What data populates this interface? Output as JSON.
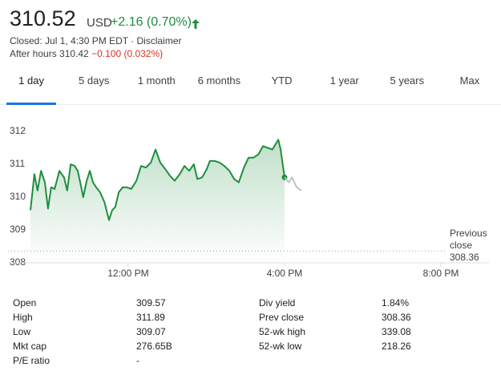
{
  "header": {
    "price": "310.52",
    "currency": "USD",
    "change": "+2.16 (0.70%)",
    "status": "Closed: Jul 1, 4:30 PM EDT · Disclaimer",
    "after_hours": "After hours 310.42",
    "after_hours_change": "−0.100 (0.032%)"
  },
  "tabs": [
    "1 day",
    "5 days",
    "1 month",
    "6 months",
    "YTD",
    "1 year",
    "5 years",
    "Max"
  ],
  "chart_data": {
    "type": "line",
    "x": [
      9.5,
      9.6,
      9.68,
      9.77,
      9.87,
      9.95,
      10.03,
      10.12,
      10.24,
      10.36,
      10.44,
      10.53,
      10.63,
      10.71,
      10.79,
      10.85,
      10.94,
      11.02,
      11.1,
      11.18,
      11.28,
      11.39,
      11.51,
      11.59,
      11.67,
      11.76,
      11.86,
      11.96,
      12.08,
      12.21,
      12.33,
      12.45,
      12.58,
      12.7,
      12.82,
      12.95,
      13.07,
      13.19,
      13.32,
      13.44,
      13.56,
      13.68,
      13.77,
      13.89,
      14.01,
      14.09,
      14.22,
      14.34,
      14.46,
      14.59,
      14.71,
      14.83,
      14.96,
      15.08,
      15.2,
      15.33,
      15.45,
      15.57,
      15.69,
      15.84,
      15.9,
      16.0,
      16.11,
      16.19,
      16.31,
      16.43
    ],
    "series": [
      {
        "color": "#1e8e3e",
        "values": [
          309.6,
          310.7,
          310.2,
          310.8,
          310.45,
          309.65,
          310.3,
          310.25,
          310.8,
          310.6,
          310.2,
          311.0,
          310.95,
          310.8,
          310.35,
          310.0,
          310.5,
          310.8,
          310.45,
          310.3,
          310.15,
          309.85,
          309.3,
          309.6,
          309.7,
          310.15,
          310.3,
          310.3,
          310.25,
          310.5,
          310.95,
          310.9,
          311.05,
          311.45,
          311.05,
          310.85,
          310.65,
          310.5,
          310.7,
          310.95,
          310.8,
          311.0,
          310.55,
          310.6,
          310.85,
          311.1,
          311.1,
          311.05,
          310.95,
          310.8,
          310.55,
          310.45,
          310.9,
          311.2,
          311.2,
          311.3,
          311.55,
          311.5,
          311.45,
          311.75,
          311.45,
          310.6,
          null,
          null,
          null,
          null
        ]
      },
      {
        "color": "#bdc1c6",
        "values": [
          null,
          null,
          null,
          null,
          null,
          null,
          null,
          null,
          null,
          null,
          null,
          null,
          null,
          null,
          null,
          null,
          null,
          null,
          null,
          null,
          null,
          null,
          null,
          null,
          null,
          null,
          null,
          null,
          null,
          null,
          null,
          null,
          null,
          null,
          null,
          null,
          null,
          null,
          null,
          null,
          null,
          null,
          null,
          null,
          null,
          null,
          null,
          null,
          null,
          null,
          null,
          null,
          null,
          null,
          null,
          null,
          null,
          null,
          null,
          null,
          null,
          310.6,
          310.45,
          310.6,
          310.3,
          310.2
        ]
      }
    ],
    "xlim": [
      9.5,
      21.23
    ],
    "xticks": [
      {
        "value": 12,
        "label": "12:00 PM"
      },
      {
        "value": 16,
        "label": "4:00 PM"
      },
      {
        "value": 20,
        "label": "8:00 PM"
      }
    ],
    "ylim": [
      308,
      312
    ],
    "yticks": [
      308,
      309,
      310,
      311,
      312
    ],
    "grid": false,
    "previous_close": {
      "label": "Previous close",
      "value": 308.36
    }
  },
  "stats": {
    "rows": [
      [
        "Open",
        "309.57",
        "Div yield",
        "1.84%"
      ],
      [
        "High",
        "311.89",
        "Prev close",
        "308.36"
      ],
      [
        "Low",
        "309.07",
        "52-wk high",
        "339.08"
      ],
      [
        "Mkt cap",
        "276.65B",
        "52-wk low",
        "218.26"
      ],
      [
        "P/E ratio",
        "-"
      ]
    ]
  }
}
